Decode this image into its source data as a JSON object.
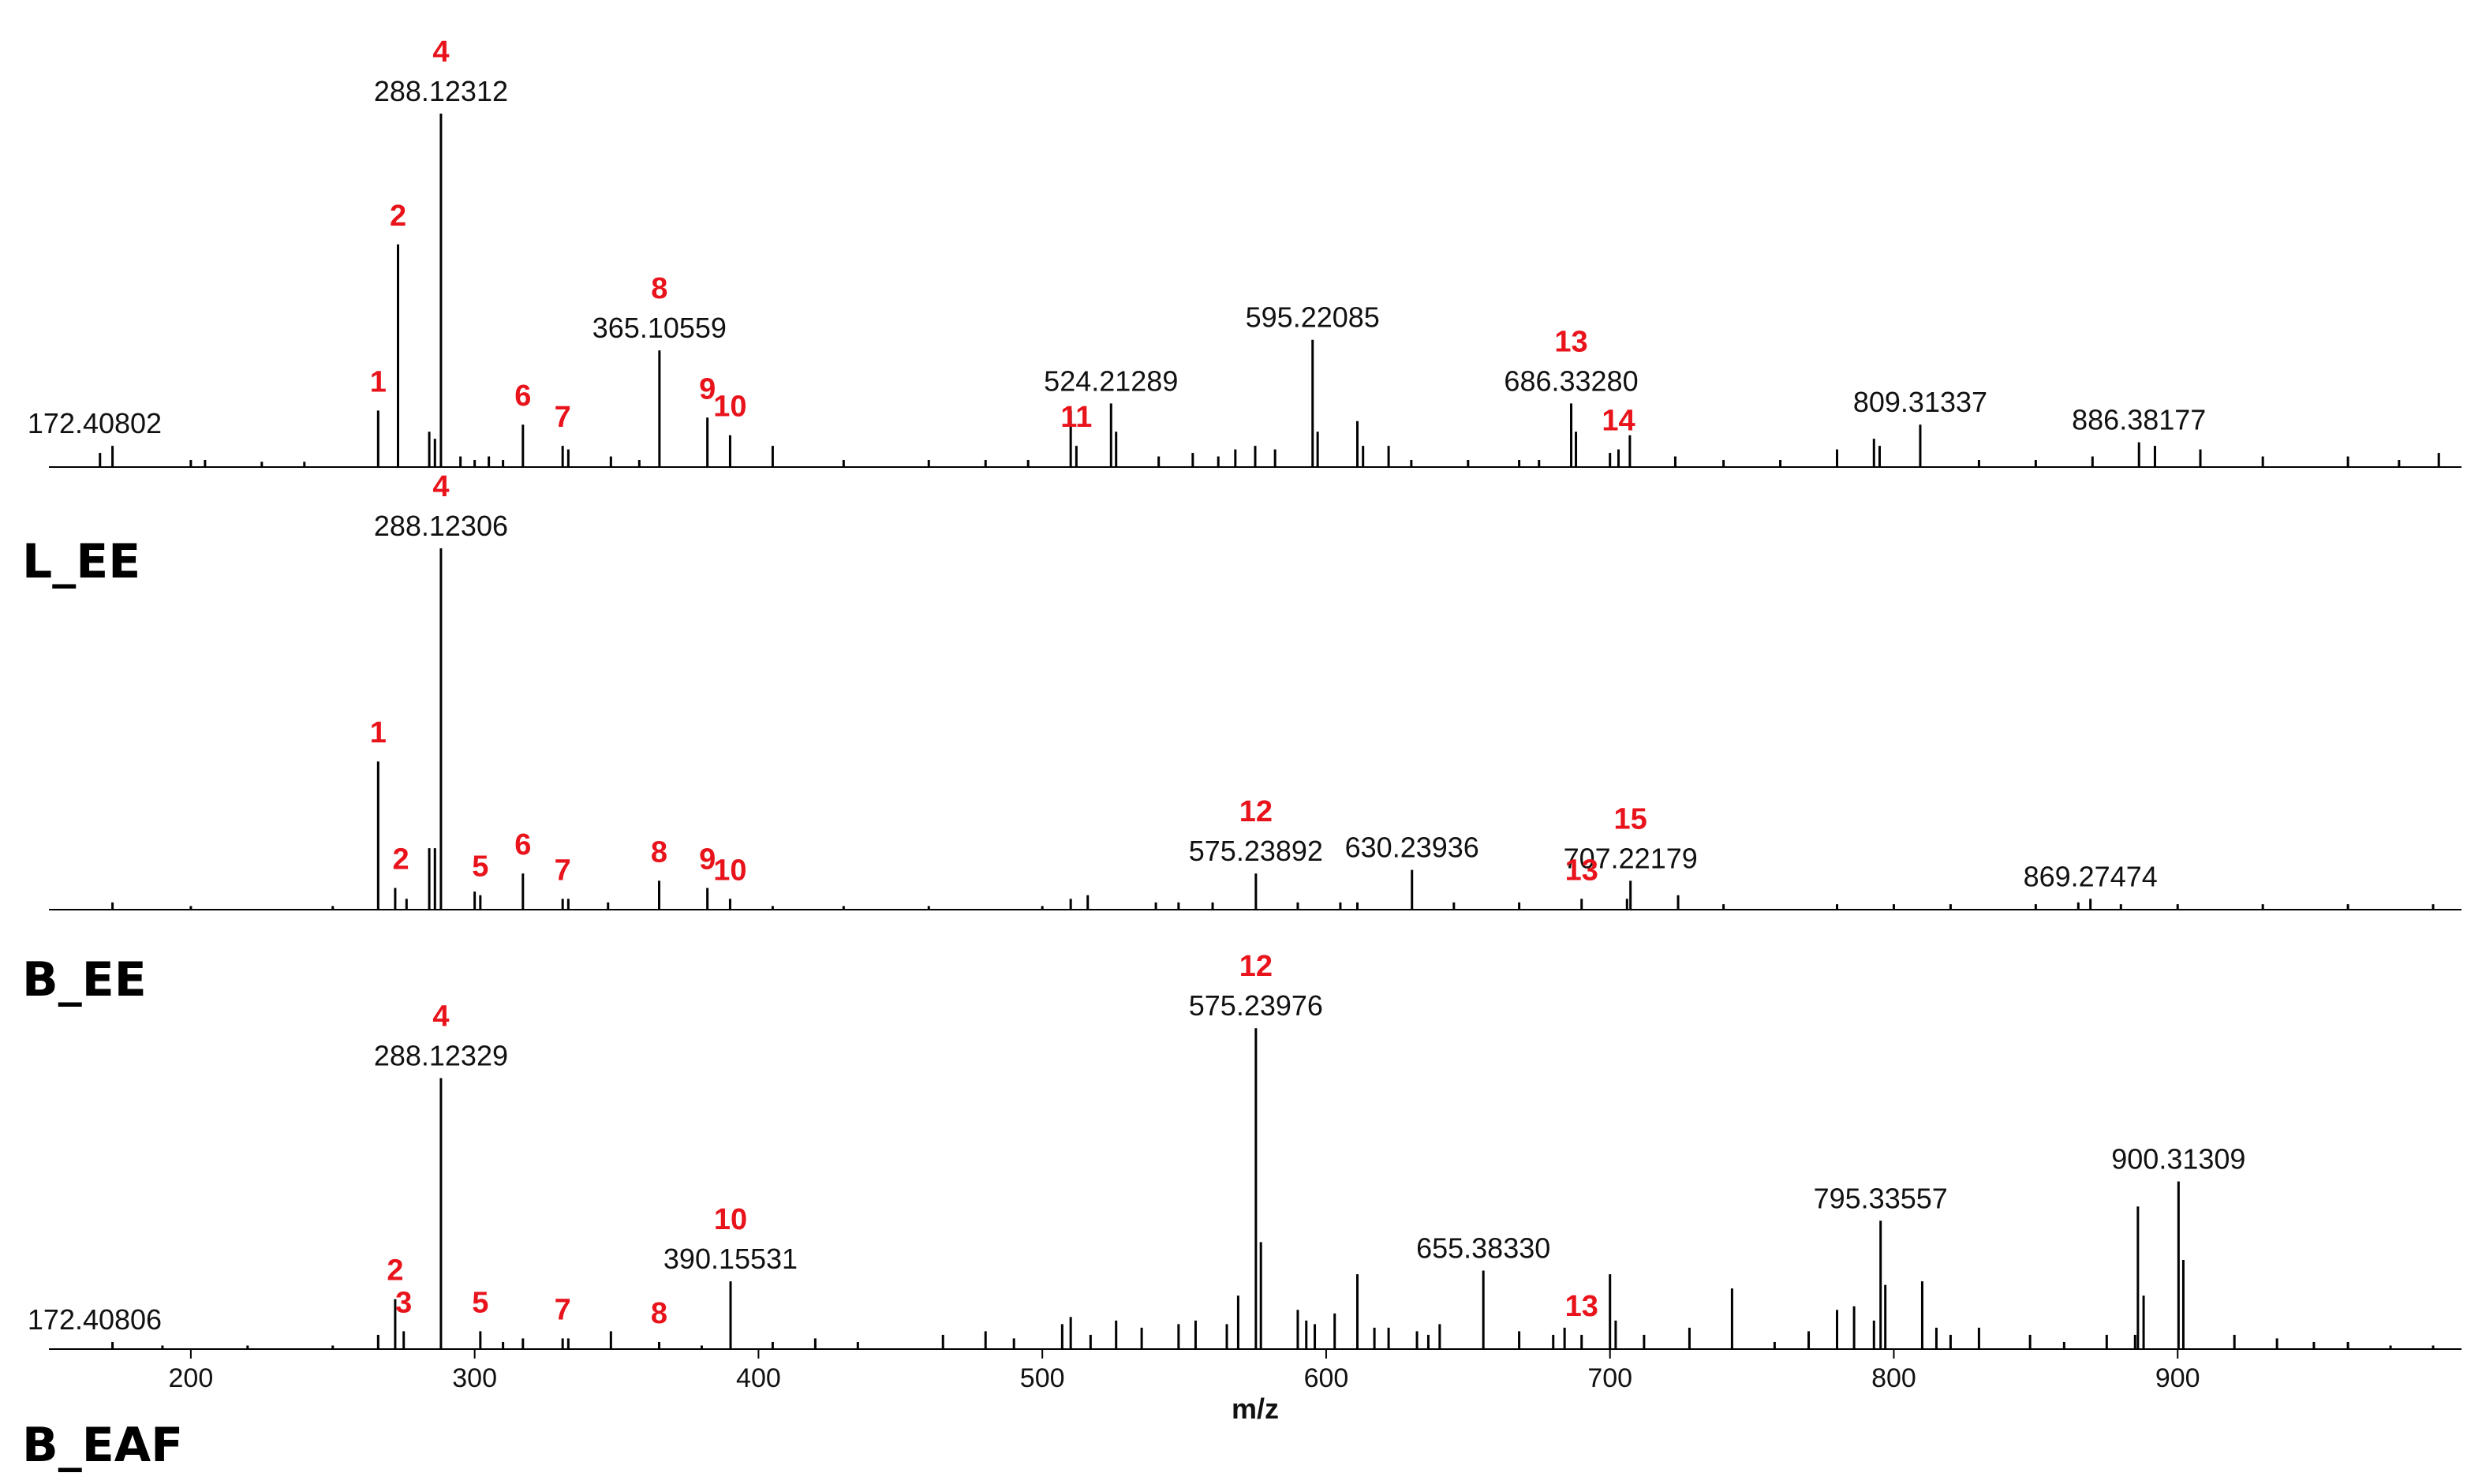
{
  "chart_data": {
    "type": "line",
    "description_axis": {
      "xlabel": "m/z",
      "xlim": [
        150,
        1000
      ],
      "xticks": [
        200,
        300,
        400,
        500,
        600,
        700,
        800,
        900
      ]
    },
    "colors": {
      "peak": "#000000",
      "number": "#e8131b",
      "text": "#111111"
    },
    "panels": [
      {
        "name": "L_EE",
        "peaks": [
          [
            168,
            0.04
          ],
          [
            172.4,
            0.06
          ],
          [
            200,
            0.02
          ],
          [
            205,
            0.02
          ],
          [
            225,
            0.015
          ],
          [
            240,
            0.015
          ],
          [
            266,
            0.16
          ],
          [
            273,
            0.63
          ],
          [
            284,
            0.1
          ],
          [
            286,
            0.08
          ],
          [
            288.12,
            1.0
          ],
          [
            295,
            0.03
          ],
          [
            300,
            0.02
          ],
          [
            305,
            0.03
          ],
          [
            310,
            0.02
          ],
          [
            317,
            0.12
          ],
          [
            331,
            0.06
          ],
          [
            333,
            0.05
          ],
          [
            348,
            0.03
          ],
          [
            358,
            0.02
          ],
          [
            365.1,
            0.33
          ],
          [
            382,
            0.14
          ],
          [
            390,
            0.09
          ],
          [
            405,
            0.06
          ],
          [
            430,
            0.02
          ],
          [
            460,
            0.02
          ],
          [
            480,
            0.02
          ],
          [
            495,
            0.02
          ],
          [
            510,
            0.16
          ],
          [
            512,
            0.06
          ],
          [
            524.21,
            0.18
          ],
          [
            526,
            0.1
          ],
          [
            541,
            0.03
          ],
          [
            553,
            0.04
          ],
          [
            562,
            0.03
          ],
          [
            568,
            0.05
          ],
          [
            575,
            0.06
          ],
          [
            582,
            0.05
          ],
          [
            595.22,
            0.36
          ],
          [
            597,
            0.1
          ],
          [
            611,
            0.13
          ],
          [
            613,
            0.06
          ],
          [
            622,
            0.06
          ],
          [
            630,
            0.02
          ],
          [
            650,
            0.02
          ],
          [
            668,
            0.02
          ],
          [
            675,
            0.02
          ],
          [
            686.33,
            0.18
          ],
          [
            688,
            0.1
          ],
          [
            700,
            0.04
          ],
          [
            703,
            0.05
          ],
          [
            707,
            0.09
          ],
          [
            723,
            0.03
          ],
          [
            740,
            0.02
          ],
          [
            760,
            0.02
          ],
          [
            780,
            0.05
          ],
          [
            793,
            0.08
          ],
          [
            795,
            0.06
          ],
          [
            809.31,
            0.12
          ],
          [
            830,
            0.02
          ],
          [
            850,
            0.02
          ],
          [
            870,
            0.03
          ],
          [
            886.38,
            0.07
          ],
          [
            892,
            0.06
          ],
          [
            908,
            0.05
          ],
          [
            930,
            0.03
          ],
          [
            960,
            0.03
          ],
          [
            978,
            0.02
          ],
          [
            992,
            0.04
          ]
        ],
        "labels": [
          {
            "mz": "172.40802",
            "x": 172.4
          },
          {
            "mz": "288.12312",
            "x": 288.12
          },
          {
            "mz": "365.10559",
            "x": 365.1
          },
          {
            "mz": "524.21289",
            "x": 524.21
          },
          {
            "mz": "595.22085",
            "x": 595.22
          },
          {
            "mz": "686.33280",
            "x": 686.33
          },
          {
            "mz": "809.31337",
            "x": 809.31
          },
          {
            "mz": "886.38177",
            "x": 886.38
          }
        ],
        "numbers": [
          {
            "n": "1",
            "x": 266
          },
          {
            "n": "2",
            "x": 273
          },
          {
            "n": "4",
            "x": 288.12
          },
          {
            "n": "6",
            "x": 317
          },
          {
            "n": "7",
            "x": 331
          },
          {
            "n": "8",
            "x": 365.1
          },
          {
            "n": "9",
            "x": 382
          },
          {
            "n": "10",
            "x": 390
          },
          {
            "n": "11",
            "x": 512
          },
          {
            "n": "13",
            "x": 686.33
          },
          {
            "n": "14",
            "x": 703
          }
        ]
      },
      {
        "name": "B_EE",
        "peaks": [
          [
            172.4,
            0.02
          ],
          [
            200,
            0.01
          ],
          [
            250,
            0.01
          ],
          [
            266,
            0.41
          ],
          [
            272,
            0.06
          ],
          [
            276,
            0.03
          ],
          [
            284,
            0.17
          ],
          [
            286,
            0.17
          ],
          [
            288.12,
            1.0
          ],
          [
            300,
            0.05
          ],
          [
            302,
            0.04
          ],
          [
            317,
            0.1
          ],
          [
            331,
            0.03
          ],
          [
            333,
            0.03
          ],
          [
            347,
            0.02
          ],
          [
            365,
            0.08
          ],
          [
            382,
            0.06
          ],
          [
            390,
            0.03
          ],
          [
            405,
            0.01
          ],
          [
            430,
            0.01
          ],
          [
            460,
            0.01
          ],
          [
            500,
            0.01
          ],
          [
            510,
            0.03
          ],
          [
            516,
            0.04
          ],
          [
            540,
            0.02
          ],
          [
            548,
            0.02
          ],
          [
            560,
            0.02
          ],
          [
            575.24,
            0.1
          ],
          [
            590,
            0.02
          ],
          [
            605,
            0.02
          ],
          [
            611,
            0.02
          ],
          [
            630.24,
            0.11
          ],
          [
            645,
            0.02
          ],
          [
            668,
            0.02
          ],
          [
            690,
            0.03
          ],
          [
            706,
            0.03
          ],
          [
            707.22,
            0.08
          ],
          [
            724,
            0.04
          ],
          [
            740,
            0.015
          ],
          [
            780,
            0.015
          ],
          [
            800,
            0.015
          ],
          [
            820,
            0.015
          ],
          [
            850,
            0.015
          ],
          [
            865,
            0.02
          ],
          [
            869.27,
            0.03
          ],
          [
            880,
            0.015
          ],
          [
            900,
            0.015
          ],
          [
            930,
            0.015
          ],
          [
            960,
            0.015
          ],
          [
            990,
            0.015
          ]
        ],
        "labels": [
          {
            "mz": "288.12306",
            "x": 288.12
          },
          {
            "mz": "575.23892",
            "x": 575.24
          },
          {
            "mz": "630.23936",
            "x": 630.24
          },
          {
            "mz": "707.22179",
            "x": 707.22
          },
          {
            "mz": "869.27474",
            "x": 869.27
          }
        ],
        "numbers": [
          {
            "n": "1",
            "x": 266
          },
          {
            "n": "2",
            "x": 274
          },
          {
            "n": "4",
            "x": 288.12
          },
          {
            "n": "5",
            "x": 302
          },
          {
            "n": "6",
            "x": 317
          },
          {
            "n": "7",
            "x": 331
          },
          {
            "n": "8",
            "x": 365
          },
          {
            "n": "9",
            "x": 382
          },
          {
            "n": "10",
            "x": 390
          },
          {
            "n": "12",
            "x": 575.24
          },
          {
            "n": "13",
            "x": 690
          },
          {
            "n": "15",
            "x": 707.22
          }
        ]
      },
      {
        "name": "B_EAF",
        "peaks": [
          [
            172.4,
            0.02
          ],
          [
            190,
            0.01
          ],
          [
            220,
            0.01
          ],
          [
            250,
            0.01
          ],
          [
            266,
            0.04
          ],
          [
            272,
            0.14
          ],
          [
            275,
            0.05
          ],
          [
            288.12,
            0.76
          ],
          [
            302,
            0.05
          ],
          [
            310,
            0.02
          ],
          [
            317,
            0.03
          ],
          [
            331,
            0.03
          ],
          [
            333,
            0.03
          ],
          [
            348,
            0.05
          ],
          [
            365,
            0.02
          ],
          [
            380,
            0.01
          ],
          [
            390.16,
            0.19
          ],
          [
            405,
            0.02
          ],
          [
            420,
            0.03
          ],
          [
            435,
            0.02
          ],
          [
            465,
            0.04
          ],
          [
            480,
            0.05
          ],
          [
            490,
            0.03
          ],
          [
            507,
            0.07
          ],
          [
            510,
            0.09
          ],
          [
            517,
            0.04
          ],
          [
            526,
            0.08
          ],
          [
            535,
            0.06
          ],
          [
            548,
            0.07
          ],
          [
            554,
            0.08
          ],
          [
            565,
            0.07
          ],
          [
            569,
            0.15
          ],
          [
            575.24,
            0.9
          ],
          [
            577,
            0.3
          ],
          [
            590,
            0.11
          ],
          [
            593,
            0.08
          ],
          [
            596,
            0.07
          ],
          [
            603,
            0.1
          ],
          [
            611,
            0.21
          ],
          [
            617,
            0.06
          ],
          [
            622,
            0.06
          ],
          [
            632,
            0.05
          ],
          [
            636,
            0.04
          ],
          [
            640,
            0.07
          ],
          [
            655.38,
            0.22
          ],
          [
            668,
            0.05
          ],
          [
            680,
            0.04
          ],
          [
            684,
            0.06
          ],
          [
            690,
            0.04
          ],
          [
            700,
            0.21
          ],
          [
            702,
            0.08
          ],
          [
            712,
            0.04
          ],
          [
            728,
            0.06
          ],
          [
            743,
            0.17
          ],
          [
            758,
            0.02
          ],
          [
            770,
            0.05
          ],
          [
            780,
            0.11
          ],
          [
            786,
            0.12
          ],
          [
            793,
            0.08
          ],
          [
            795.34,
            0.36
          ],
          [
            797,
            0.18
          ],
          [
            810,
            0.19
          ],
          [
            815,
            0.06
          ],
          [
            820,
            0.04
          ],
          [
            830,
            0.06
          ],
          [
            848,
            0.04
          ],
          [
            860,
            0.02
          ],
          [
            875,
            0.04
          ],
          [
            885,
            0.04
          ],
          [
            886,
            0.4
          ],
          [
            888,
            0.15
          ],
          [
            900.31,
            0.47
          ],
          [
            902,
            0.25
          ],
          [
            920,
            0.04
          ],
          [
            935,
            0.03
          ],
          [
            948,
            0.02
          ],
          [
            960,
            0.02
          ],
          [
            975,
            0.01
          ],
          [
            990,
            0.01
          ]
        ],
        "labels": [
          {
            "mz": "172.40806",
            "x": 172.4
          },
          {
            "mz": "288.12329",
            "x": 288.12
          },
          {
            "mz": "390.15531",
            "x": 390.16
          },
          {
            "mz": "575.23976",
            "x": 575.24
          },
          {
            "mz": "655.38330",
            "x": 655.38
          },
          {
            "mz": "795.33557",
            "x": 795.34
          },
          {
            "mz": "900.31309",
            "x": 900.31
          }
        ],
        "numbers": [
          {
            "n": "2",
            "x": 272
          },
          {
            "n": "3",
            "x": 275
          },
          {
            "n": "4",
            "x": 288.12
          },
          {
            "n": "5",
            "x": 302
          },
          {
            "n": "7",
            "x": 331
          },
          {
            "n": "8",
            "x": 365
          },
          {
            "n": "10",
            "x": 390.16
          },
          {
            "n": "12",
            "x": 575.24
          },
          {
            "n": "13",
            "x": 690
          }
        ]
      }
    ]
  }
}
